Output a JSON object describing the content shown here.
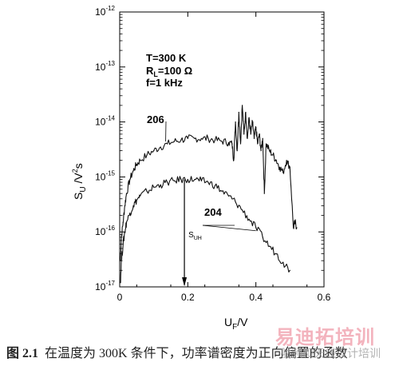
{
  "chart_data": {
    "type": "line",
    "xlabel_main": "U",
    "xlabel_sub": "F",
    "xlabel_rest": "/V",
    "ylabel_main": "S",
    "ylabel_sub": "U",
    "ylabel_rest": "  /V",
    "ylabel_sup": "2",
    "ylabel_end": "s",
    "xlim": [
      0,
      0.6
    ],
    "ylim_log10": [
      -17,
      -12
    ],
    "y_scale": "log",
    "x_ticks": [
      0,
      0.2,
      0.4,
      0.6
    ],
    "x_tick_labels": [
      "0",
      "0.2",
      "0.4",
      "0.6"
    ],
    "y_ticks": [
      {
        "base": "10",
        "exp": "-12"
      },
      {
        "base": "10",
        "exp": "-13"
      },
      {
        "base": "10",
        "exp": "-14"
      },
      {
        "base": "10",
        "exp": "-15"
      },
      {
        "base": "10",
        "exp": "-16"
      },
      {
        "base": "10",
        "exp": "-17"
      }
    ],
    "conditions": [
      {
        "main": "T=300 K",
        "sub": "",
        "rest": ""
      },
      {
        "main": "R",
        "sub": "L",
        "rest": "=100 Ω"
      },
      {
        "main": "f=1 kHz",
        "sub": "",
        "rest": ""
      }
    ],
    "series": [
      {
        "name": "206",
        "x": [
          0.002,
          0.005,
          0.01,
          0.015,
          0.02,
          0.03,
          0.04,
          0.05,
          0.06,
          0.08,
          0.1,
          0.12,
          0.14,
          0.16,
          0.18,
          0.2,
          0.22,
          0.24,
          0.26,
          0.28,
          0.3,
          0.32,
          0.33,
          0.335,
          0.34,
          0.345,
          0.35,
          0.355,
          0.36,
          0.365,
          0.37,
          0.375,
          0.38,
          0.385,
          0.39,
          0.395,
          0.4,
          0.405,
          0.41,
          0.415,
          0.42,
          0.425,
          0.43,
          0.44,
          0.45,
          0.46,
          0.47,
          0.48,
          0.49,
          0.5,
          0.51,
          0.515,
          0.52
        ],
        "y": [
          3e-17,
          8e-17,
          1.5e-16,
          3e-16,
          5e-16,
          9e-16,
          1.3e-15,
          1.7e-15,
          2e-15,
          2.5e-15,
          3e-15,
          3.5e-15,
          4e-15,
          4.4e-15,
          4.7e-15,
          5e-15,
          5e-15,
          5e-15,
          5e-15,
          4.7e-15,
          4.5e-15,
          4.2e-15,
          4e-15,
          2e-15,
          1e-14,
          3e-15,
          1.5e-14,
          4e-15,
          2e-14,
          6e-15,
          1.5e-14,
          5e-15,
          1.2e-14,
          6e-15,
          1e-14,
          5e-15,
          8e-15,
          4e-15,
          6e-15,
          3e-15,
          5e-15,
          5e-16,
          4e-15,
          3e-15,
          2.5e-15,
          2e-15,
          1.5e-15,
          1.2e-15,
          2e-15,
          1.5e-15,
          1.2e-16,
          1.5e-16,
          1.2e-16
        ]
      },
      {
        "name": "204",
        "x": [
          0.002,
          0.005,
          0.01,
          0.015,
          0.02,
          0.03,
          0.04,
          0.05,
          0.06,
          0.08,
          0.1,
          0.12,
          0.14,
          0.16,
          0.18,
          0.2,
          0.22,
          0.24,
          0.26,
          0.28,
          0.3,
          0.32,
          0.34,
          0.36,
          0.38,
          0.4,
          0.42,
          0.44,
          0.46,
          0.48,
          0.5
        ],
        "y": [
          1.2e-17,
          3e-17,
          6e-17,
          1e-16,
          1.5e-16,
          2.2e-16,
          3e-16,
          3.8e-16,
          4.5e-16,
          5.5e-16,
          6.5e-16,
          7.2e-16,
          8e-16,
          8.5e-16,
          9e-16,
          9e-16,
          9e-16,
          8.5e-16,
          8e-16,
          7e-16,
          5.5e-16,
          4.5e-16,
          3.5e-16,
          2.5e-16,
          1.7e-16,
          1.2e-16,
          8e-17,
          5.5e-17,
          4e-17,
          2.8e-17,
          2e-17
        ]
      }
    ],
    "annotations": {
      "marker_main": "S",
      "marker_sub": "UH",
      "marker_x": 0.19
    }
  },
  "caption": {
    "figure_number": "图 2.1",
    "text": "在温度为 300K 条件下，功率谱密度为正向偏置的函数"
  },
  "watermark": {
    "brand": "易迪拓培训",
    "subtitle": "射频和天线设计培训"
  }
}
